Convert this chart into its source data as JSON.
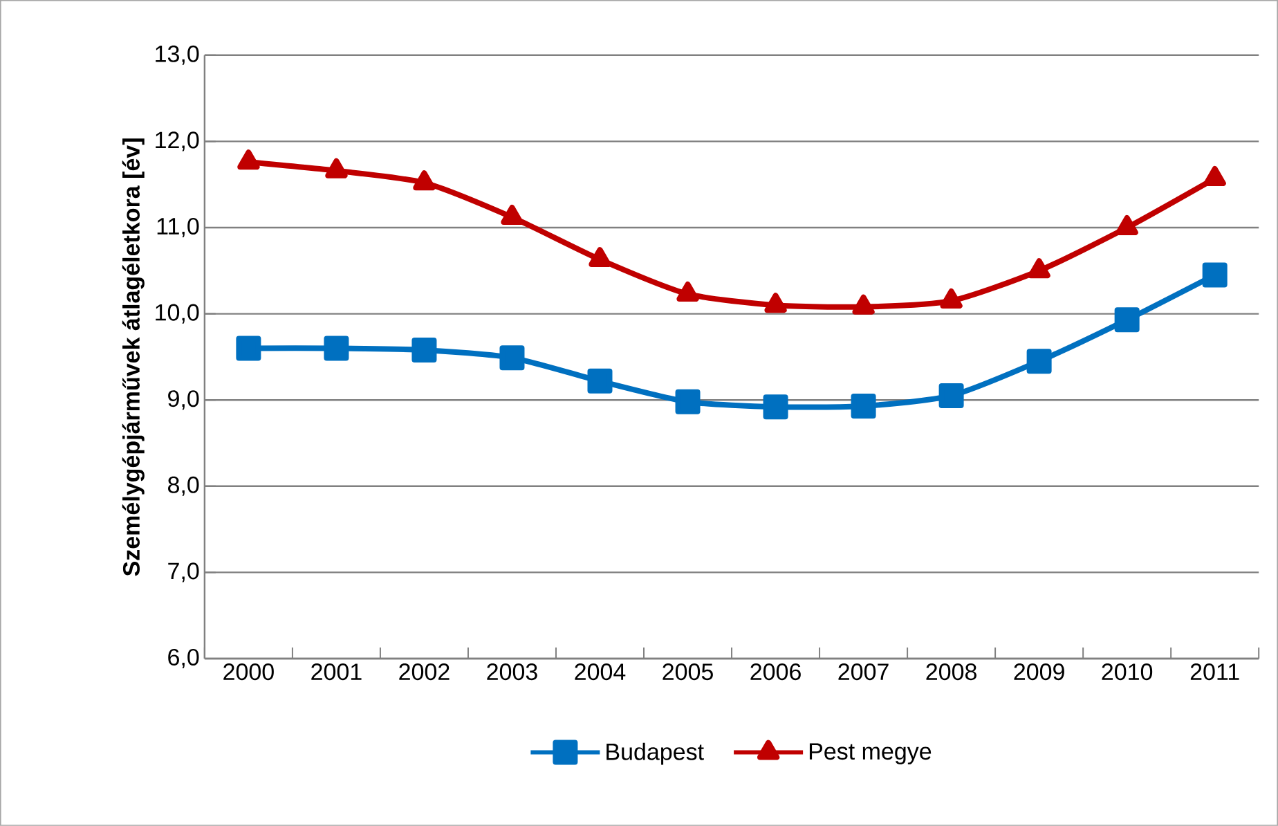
{
  "chart_data": {
    "type": "line",
    "ylabel": "Személygépjárművek átlagéletkora [év]",
    "categories": [
      "2000",
      "2001",
      "2002",
      "2003",
      "2004",
      "2005",
      "2006",
      "2007",
      "2008",
      "2009",
      "2010",
      "2011"
    ],
    "series": [
      {
        "name": "Budapest",
        "color": "#0070c0",
        "marker": "square",
        "values": [
          9.6,
          9.6,
          9.58,
          9.49,
          9.22,
          8.98,
          8.92,
          8.93,
          9.05,
          9.45,
          9.93,
          10.45
        ]
      },
      {
        "name": "Pest megye",
        "color": "#c00000",
        "marker": "triangle",
        "values": [
          11.76,
          11.66,
          11.52,
          11.12,
          10.63,
          10.23,
          10.1,
          10.08,
          10.15,
          10.5,
          11.0,
          11.57
        ]
      }
    ],
    "ylim": [
      6,
      13
    ],
    "yticks": [
      {
        "value": 6,
        "label": "6,0"
      },
      {
        "value": 7,
        "label": "7,0"
      },
      {
        "value": 8,
        "label": "8,0"
      },
      {
        "value": 9,
        "label": "9,0"
      },
      {
        "value": 10,
        "label": "10,0"
      },
      {
        "value": 11,
        "label": "11,0"
      },
      {
        "value": 12,
        "label": "12,0"
      },
      {
        "value": 13,
        "label": "13,0"
      }
    ],
    "grid": "y",
    "legend": "bottom"
  }
}
